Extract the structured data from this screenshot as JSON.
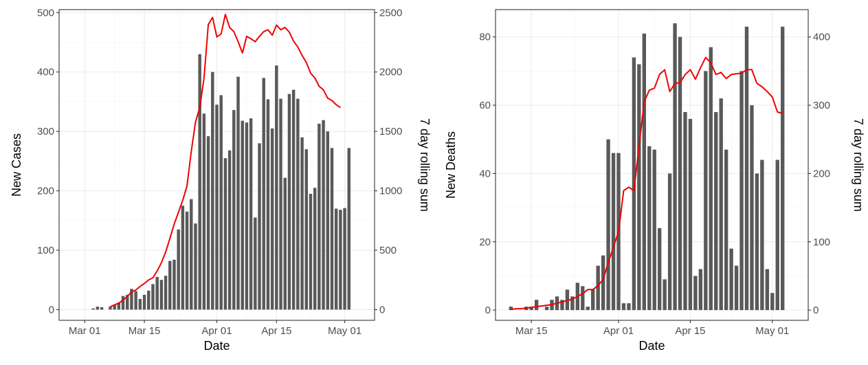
{
  "chart_data": [
    {
      "type": "bar",
      "xlabel": "Date",
      "ylabel": "New Cases",
      "y2label": "7 day rolling sum",
      "xlim": [
        "2020-02-24",
        "2020-05-08"
      ],
      "x_ticks": [
        {
          "date": "2020-03-01",
          "label": "Mar 01"
        },
        {
          "date": "2020-03-15",
          "label": "Mar 15"
        },
        {
          "date": "2020-04-01",
          "label": "Apr 01"
        },
        {
          "date": "2020-04-15",
          "label": "Apr 15"
        },
        {
          "date": "2020-05-01",
          "label": "May 01"
        }
      ],
      "ylim": [
        -18,
        505
      ],
      "y_ticks": [
        0,
        100,
        200,
        300,
        400,
        500
      ],
      "y2_ticks": [
        0,
        500,
        1000,
        1500,
        2000,
        2500
      ],
      "y2_per_y": 5,
      "grid": true,
      "start_date": "2020-03-03",
      "bar_color": "#595959",
      "line_color": "#ee0000",
      "series": [
        {
          "name": "New Cases",
          "kind": "bar",
          "values": [
            2,
            5,
            4,
            0,
            5,
            8,
            12,
            23,
            25,
            35,
            31,
            18,
            25,
            32,
            43,
            55,
            50,
            57,
            82,
            84,
            135,
            175,
            165,
            186,
            145,
            430,
            330,
            292,
            400,
            345,
            361,
            255,
            268,
            336,
            392,
            318,
            315,
            322,
            155,
            280,
            390,
            354,
            305,
            411,
            355,
            222,
            363,
            370,
            355,
            290,
            270,
            195,
            205,
            313,
            319,
            300,
            272,
            170,
            168,
            171,
            272
          ]
        },
        {
          "name": "7 day rolling sum",
          "kind": "line",
          "axis": "right",
          "start_index": 4,
          "values": [
            25,
            40,
            55,
            80,
            110,
            150,
            165,
            195,
            220,
            250,
            268,
            325,
            395,
            485,
            600,
            720,
            820,
            920,
            1040,
            1330,
            1580,
            1700,
            1950,
            2400,
            2460,
            2295,
            2320,
            2485,
            2375,
            2340,
            2255,
            2160,
            2300,
            2280,
            2255,
            2300,
            2340,
            2355,
            2310,
            2395,
            2355,
            2375,
            2335,
            2260,
            2210,
            2140,
            2080,
            1990,
            1950,
            1880,
            1850,
            1780,
            1760,
            1725,
            1700
          ]
        }
      ]
    },
    {
      "type": "bar",
      "xlabel": "Date",
      "ylabel": "New Deaths",
      "y2label": "7 day rolling sum",
      "xlim": [
        "2020-03-08",
        "2020-05-08"
      ],
      "x_ticks": [
        {
          "date": "2020-03-15",
          "label": "Mar 15"
        },
        {
          "date": "2020-04-01",
          "label": "Apr 01"
        },
        {
          "date": "2020-04-15",
          "label": "Apr 15"
        },
        {
          "date": "2020-05-01",
          "label": "May 01"
        }
      ],
      "ylim": [
        -3,
        88
      ],
      "y_ticks": [
        0,
        20,
        40,
        60,
        80
      ],
      "y2_ticks": [
        0,
        100,
        200,
        300,
        400
      ],
      "y2_per_y": 5,
      "grid": true,
      "start_date": "2020-03-11",
      "bar_color": "#595959",
      "line_color": "#ee0000",
      "series": [
        {
          "name": "New Deaths",
          "kind": "bar",
          "values": [
            1,
            0,
            0,
            1,
            1,
            3,
            0,
            1,
            3,
            4,
            3,
            6,
            4,
            8,
            7,
            1,
            6,
            13,
            16,
            50,
            46,
            46,
            2,
            2,
            74,
            72,
            81,
            48,
            47,
            24,
            9,
            40,
            84,
            80,
            58,
            56,
            10,
            12,
            70,
            77,
            58,
            62,
            47,
            18,
            13,
            70,
            83,
            60,
            40,
            44,
            12,
            5,
            44,
            83
          ]
        },
        {
          "name": "7 day rolling sum",
          "kind": "line",
          "axis": "right",
          "start_index": 0,
          "values": [
            1,
            2,
            2,
            3,
            4,
            5,
            6,
            7,
            8,
            10,
            12,
            14,
            16,
            20,
            24,
            30,
            30,
            36,
            45,
            70,
            92,
            115,
            175,
            180,
            175,
            240,
            305,
            322,
            325,
            345,
            352,
            320,
            332,
            333,
            345,
            352,
            338,
            355,
            370,
            362,
            345,
            348,
            339,
            345,
            346,
            347,
            352,
            352,
            332,
            327,
            320,
            312,
            290,
            288
          ]
        }
      ]
    }
  ]
}
